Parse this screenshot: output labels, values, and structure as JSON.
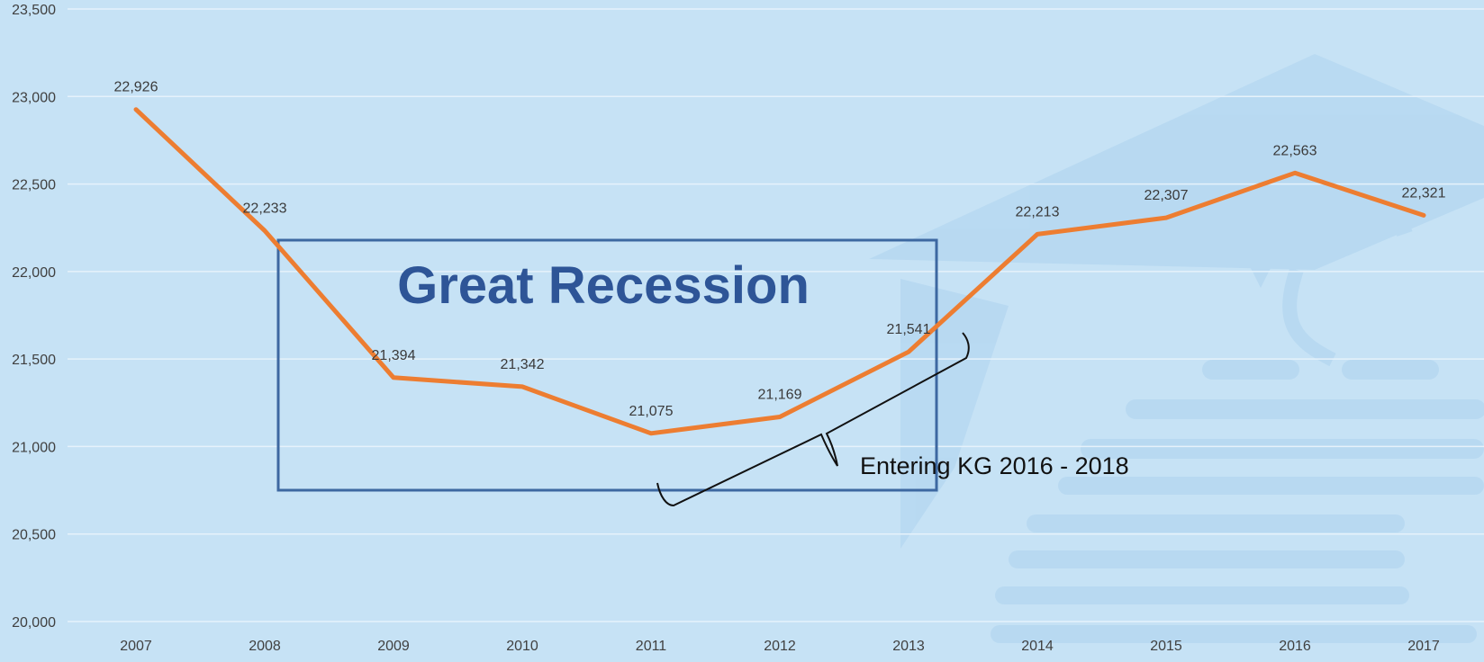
{
  "colors": {
    "background": "#c6e2f5",
    "line": "#ed7d31",
    "box": "#3d68a1",
    "box_title": "#2e5597",
    "gridline": "#e6f2fb",
    "watermark": "#aed3ef"
  },
  "chart_data": {
    "type": "line",
    "title": "",
    "xlabel": "",
    "ylabel": "",
    "x": [
      "2007",
      "2008",
      "2009",
      "2010",
      "2011",
      "2012",
      "2013",
      "2014",
      "2015",
      "2016",
      "2017"
    ],
    "series": [
      {
        "values": [
          22926,
          22233,
          21394,
          21342,
          21075,
          21169,
          21541,
          22213,
          22307,
          22563,
          22321
        ],
        "labels": [
          "22,926",
          "22,233",
          "21,394",
          "21,342",
          "21,075",
          "21,169",
          "21,541",
          "22,213",
          "22,307",
          "22,563",
          "22,321"
        ]
      }
    ],
    "ylim": [
      20000,
      23500
    ],
    "yticks": [
      20000,
      20500,
      21000,
      21500,
      22000,
      22500,
      23000,
      23500
    ],
    "ytick_labels": [
      "20,000",
      "20,500",
      "21,000",
      "21,500",
      "22,000",
      "22,500",
      "23,000",
      "23,500"
    ],
    "grid": true,
    "legend": "none",
    "annotations": {
      "box_label": "Great Recession",
      "brace_label": "Entering KG 2016 - 2018"
    }
  }
}
